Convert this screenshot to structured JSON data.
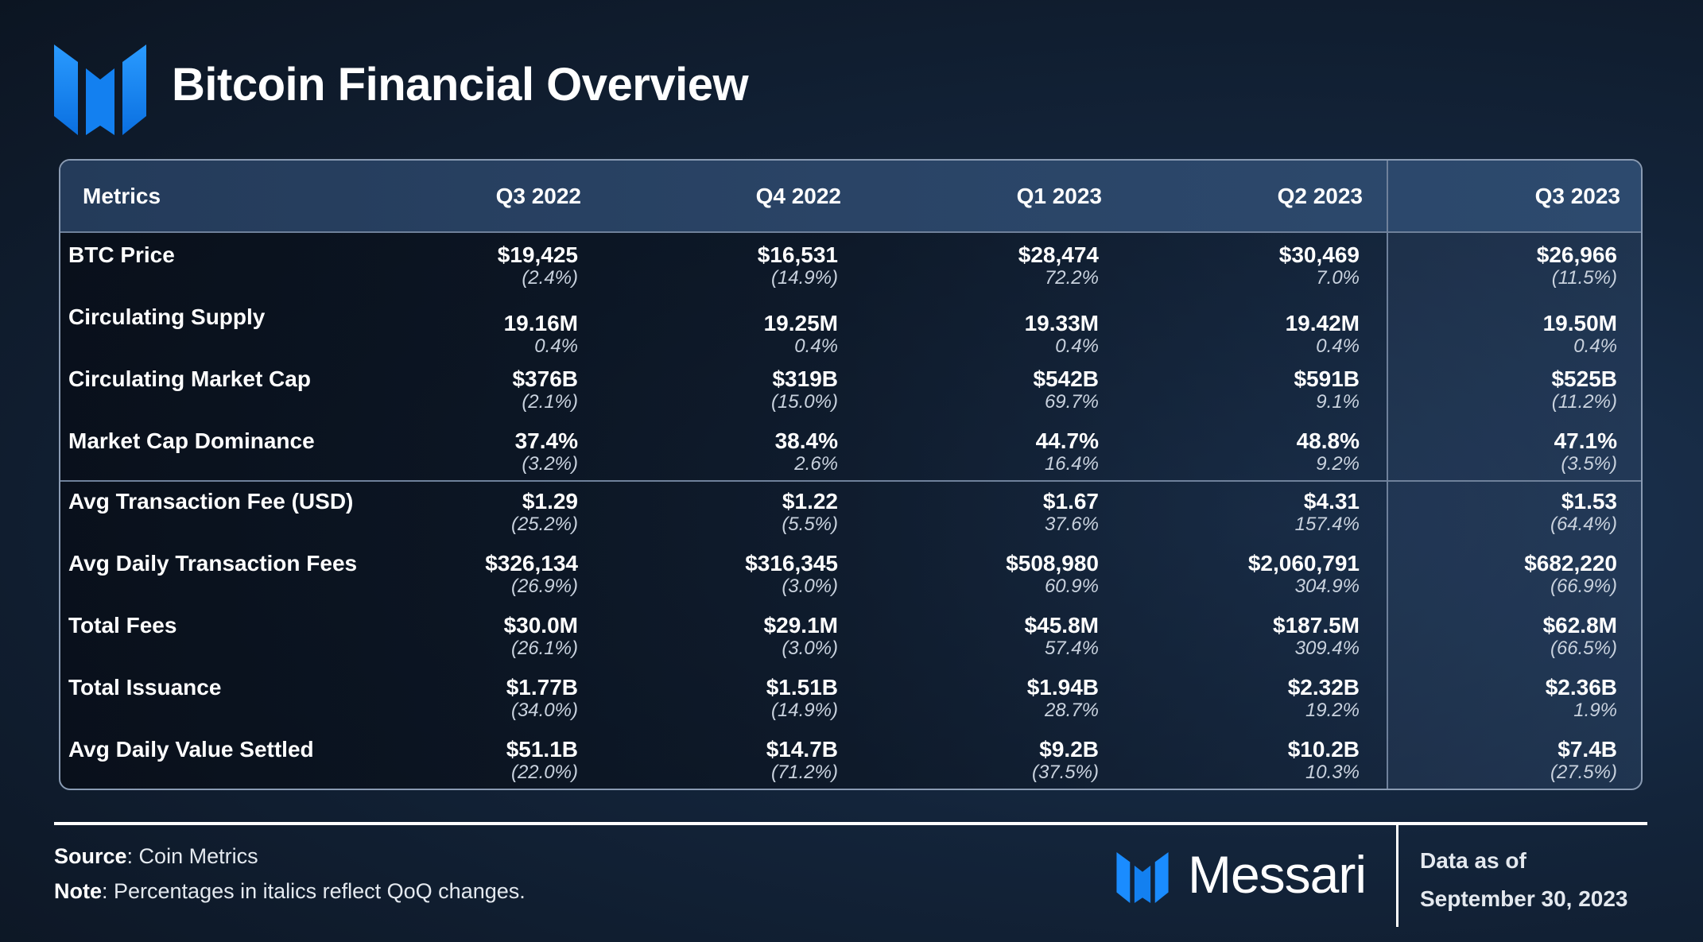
{
  "header": {
    "title": "Bitcoin Financial Overview",
    "logo_icon": "messari-m-logo-icon",
    "accent_color": "#1a8cff"
  },
  "chart_data": {
    "type": "table",
    "title": "Bitcoin Financial Overview",
    "columns": [
      "Metrics",
      "Q3 2022",
      "Q4 2022",
      "Q1 2023",
      "Q2 2023",
      "Q3 2023"
    ],
    "rows": [
      {
        "metric": "BTC Price",
        "values": [
          "$19,425",
          "$16,531",
          "$28,474",
          "$30,469",
          "$26,966"
        ],
        "changes": [
          "(2.4%)",
          "(14.9%)",
          "72.2%",
          "7.0%",
          "(11.5%)"
        ]
      },
      {
        "metric": "Circulating Supply",
        "values": [
          "19.16M",
          "19.25M",
          "19.33M",
          "19.42M",
          "19.50M"
        ],
        "changes": [
          "0.4%",
          "0.4%",
          "0.4%",
          "0.4%",
          "0.4%"
        ]
      },
      {
        "metric": "Circulating Market Cap",
        "values": [
          "$376B",
          "$319B",
          "$542B",
          "$591B",
          "$525B"
        ],
        "changes": [
          "(2.1%)",
          "(15.0%)",
          "69.7%",
          "9.1%",
          "(11.2%)"
        ]
      },
      {
        "metric": "Market Cap Dominance",
        "values": [
          "37.4%",
          "38.4%",
          "44.7%",
          "48.8%",
          "47.1%"
        ],
        "changes": [
          "(3.2%)",
          "2.6%",
          "16.4%",
          "9.2%",
          "(3.5%)"
        ]
      },
      {
        "metric": "Avg Transaction Fee  (USD)",
        "values": [
          "$1.29",
          "$1.22",
          "$1.67",
          "$4.31",
          "$1.53"
        ],
        "changes": [
          "(25.2%)",
          "(5.5%)",
          "37.6%",
          "157.4%",
          "(64.4%)"
        ]
      },
      {
        "metric": "Avg Daily Transaction Fees",
        "values": [
          "$326,134",
          "$316,345",
          "$508,980",
          "$2,060,791",
          "$682,220"
        ],
        "changes": [
          "(26.9%)",
          "(3.0%)",
          "60.9%",
          "304.9%",
          "(66.9%)"
        ]
      },
      {
        "metric": "Total Fees",
        "values": [
          "$30.0M",
          "$29.1M",
          "$45.8M",
          "$187.5M",
          "$62.8M"
        ],
        "changes": [
          "(26.1%)",
          "(3.0%)",
          "57.4%",
          "309.4%",
          "(66.5%)"
        ]
      },
      {
        "metric": "Total Issuance",
        "values": [
          "$1.77B",
          "$1.51B",
          "$1.94B",
          "$2.32B",
          "$2.36B"
        ],
        "changes": [
          "(34.0%)",
          "(14.9%)",
          "28.7%",
          "19.2%",
          "1.9%"
        ]
      },
      {
        "metric": "Avg Daily Value Settled",
        "values": [
          "$51.1B",
          "$14.7B",
          "$9.2B",
          "$10.2B",
          "$7.4B"
        ],
        "changes": [
          "(22.0%)",
          "(71.2%)",
          "(37.5%)",
          "10.3%",
          "(27.5%)"
        ]
      }
    ]
  },
  "footer": {
    "source_label": "Source",
    "source_text": ": Coin Metrics",
    "note_label": "Note",
    "note_text": ":  Percentages in italics reflect QoQ changes.",
    "brand_name": "Messari",
    "as_of_label": "Data as of",
    "as_of_date": "September 30, 2023"
  }
}
